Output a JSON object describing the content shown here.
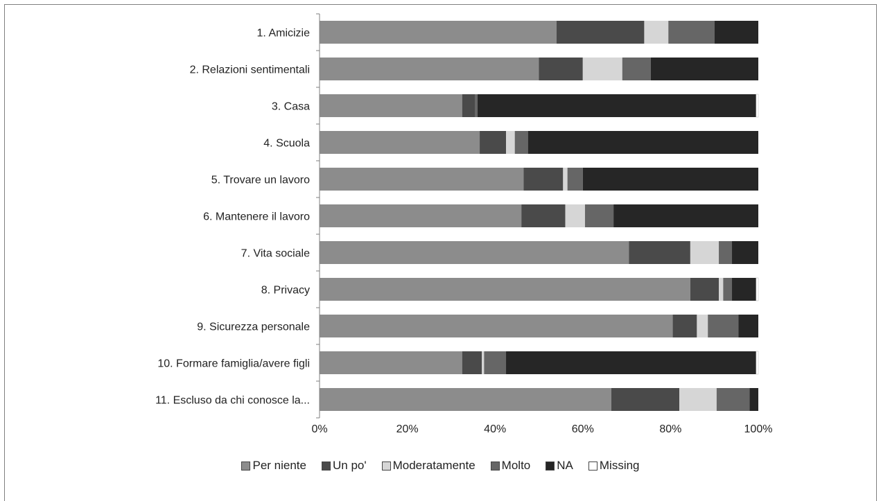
{
  "chart_data": {
    "type": "bar",
    "orientation": "horizontal",
    "stacked": true,
    "percent_stacked": true,
    "categories": [
      "1. Amicizie",
      "2. Relazioni sentimentali",
      "3. Casa",
      "4. Scuola",
      "5. Trovare un lavoro",
      "6. Mantenere il lavoro",
      "7. Vita sociale",
      "8. Privacy",
      "9. Sicurezza personale",
      "10. Formare famiglia/avere figli",
      "11. Escluso da chi conosce la..."
    ],
    "series": [
      {
        "name": "Per niente",
        "color": "#8c8c8c",
        "values": [
          54.0,
          50.0,
          32.5,
          36.5,
          46.5,
          46.0,
          70.5,
          84.5,
          80.5,
          32.5,
          66.5
        ]
      },
      {
        "name": "Un po'",
        "color": "#4a4a4a",
        "values": [
          20.0,
          10.0,
          3.0,
          6.0,
          9.0,
          10.0,
          14.0,
          6.5,
          5.5,
          4.5,
          15.5
        ]
      },
      {
        "name": "Moderatamente",
        "color": "#d6d6d6",
        "values": [
          5.5,
          9.0,
          0.0,
          2.0,
          1.0,
          4.5,
          6.5,
          1.0,
          2.5,
          0.5,
          8.5
        ]
      },
      {
        "name": "Molto",
        "color": "#666666",
        "values": [
          10.5,
          6.5,
          0.5,
          3.0,
          3.5,
          6.5,
          3.0,
          2.0,
          7.0,
          5.0,
          7.5
        ]
      },
      {
        "name": "NA",
        "color": "#262626",
        "values": [
          10.0,
          24.5,
          63.5,
          52.5,
          40.0,
          33.0,
          6.0,
          5.5,
          4.5,
          57.0,
          2.0
        ]
      },
      {
        "name": "Missing",
        "color": "#ffffff",
        "values": [
          0.0,
          0.0,
          0.5,
          0.0,
          0.0,
          0.0,
          0.0,
          0.5,
          0.0,
          0.5,
          0.0
        ]
      }
    ],
    "xlim": [
      0,
      100
    ],
    "x_ticks": [
      "0%",
      "20%",
      "40%",
      "60%",
      "80%",
      "100%"
    ],
    "grid": false,
    "legend_position": "bottom",
    "title": "",
    "xlabel": "",
    "ylabel": ""
  }
}
